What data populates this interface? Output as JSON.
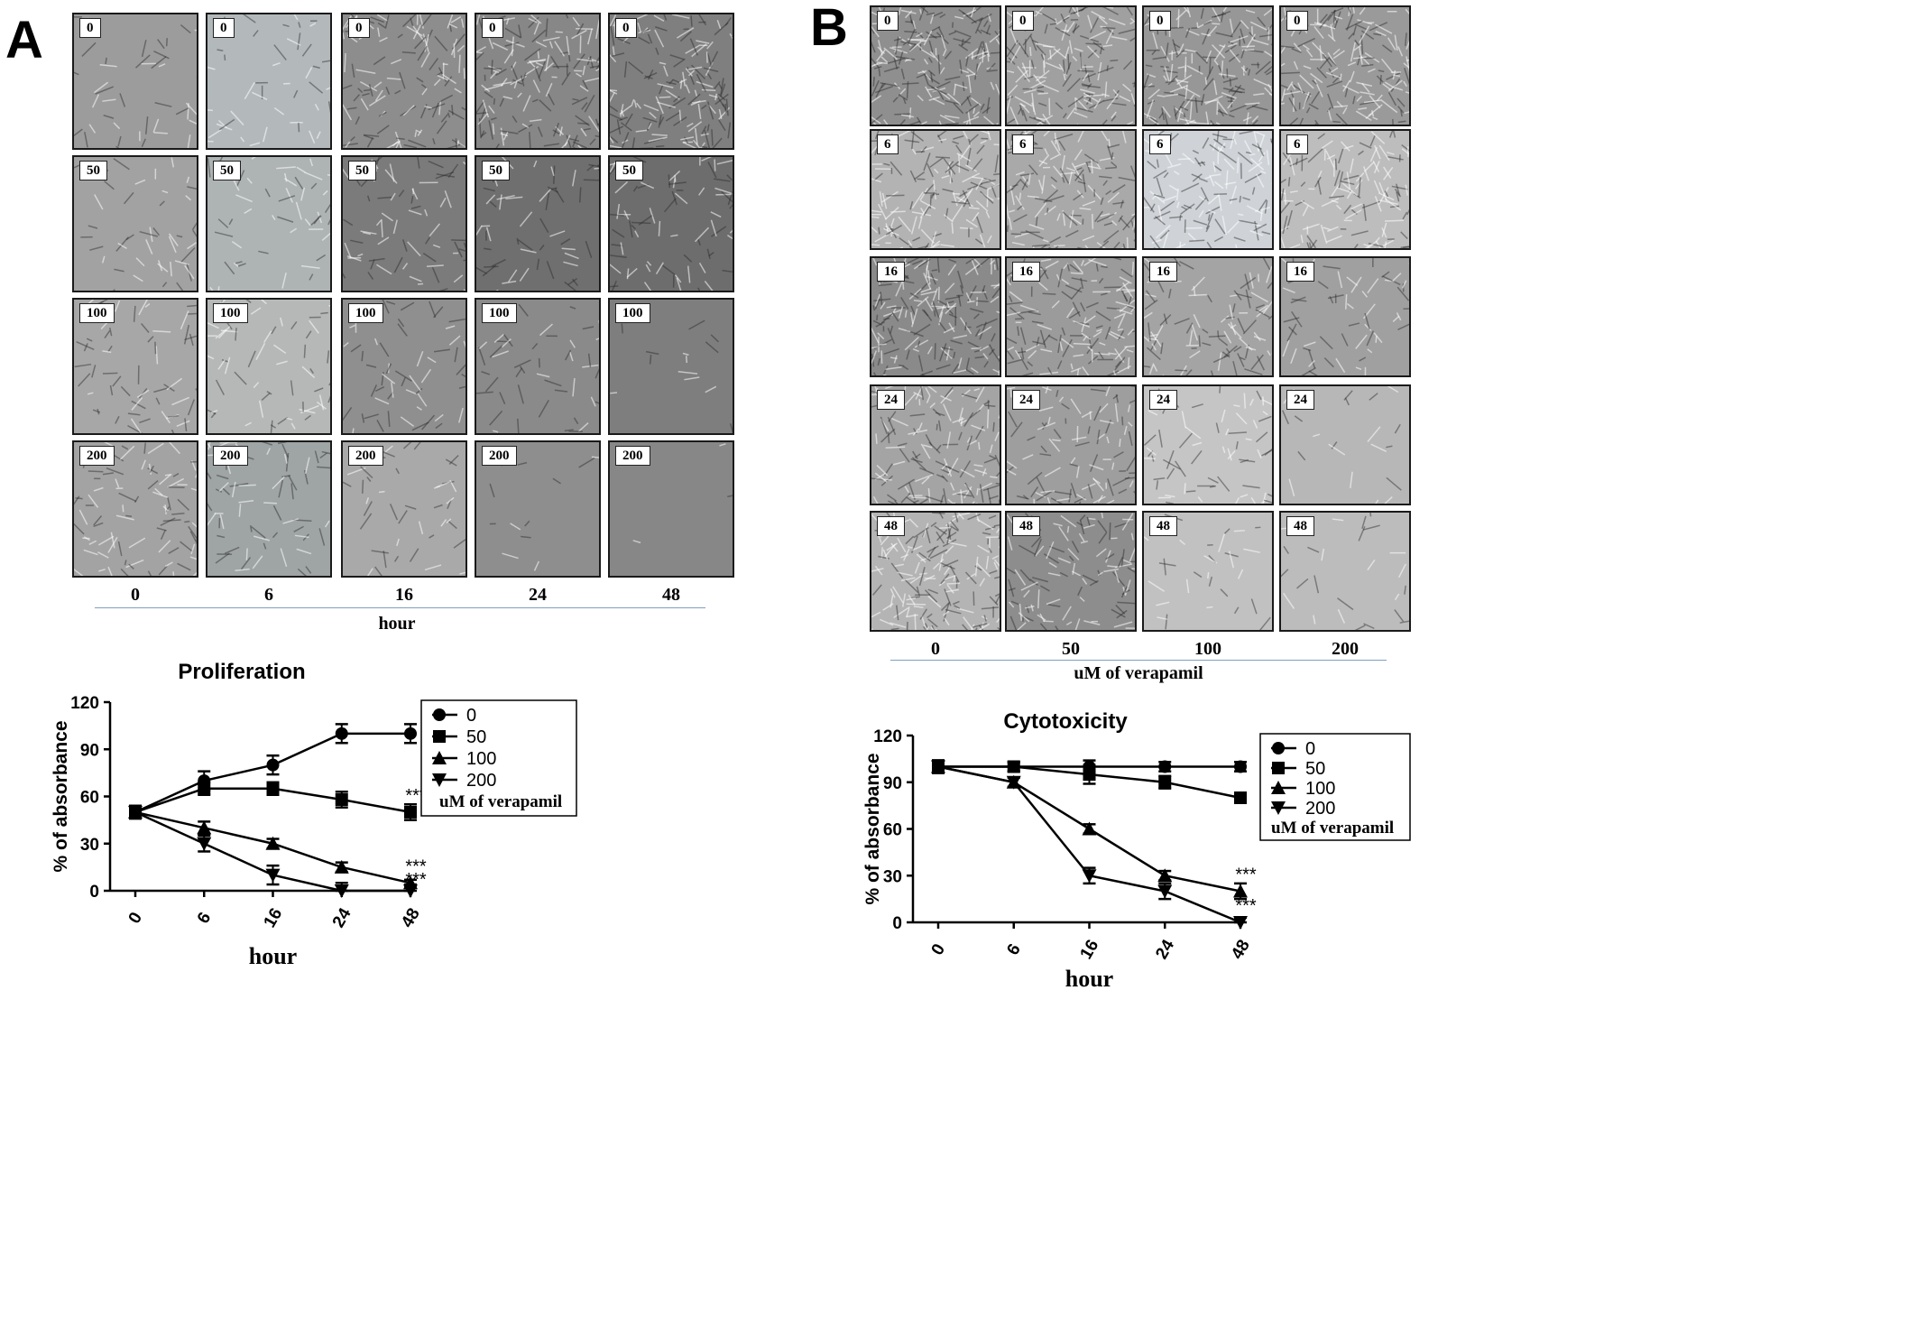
{
  "panel_a": {
    "letter": "A",
    "columns": [
      "0",
      "6",
      "16",
      "24",
      "48"
    ],
    "rows": [
      "0",
      "50",
      "100",
      "200"
    ],
    "column_axis_title": "hour"
  },
  "panel_b": {
    "letter": "B",
    "columns": [
      "0",
      "50",
      "100",
      "200"
    ],
    "rows": [
      "0",
      "6",
      "16",
      "24",
      "48"
    ],
    "column_axis_title": "uM of verapamil"
  },
  "chart_data": [
    {
      "type": "line",
      "title": "Proliferation",
      "xlabel": "hour",
      "ylabel": "% of absorbance",
      "categories": [
        "0",
        "6",
        "16",
        "24",
        "48"
      ],
      "yticks": [
        "0",
        "30",
        "60",
        "90",
        "120"
      ],
      "ylim": [
        0,
        120
      ],
      "legend_title": "uM of verapamil",
      "legend_position": "right",
      "series": [
        {
          "name": "0",
          "marker": "circle",
          "values": [
            50,
            70,
            80,
            100,
            100
          ],
          "errors": [
            4,
            6,
            6,
            6,
            6
          ]
        },
        {
          "name": "50",
          "marker": "square",
          "values": [
            50,
            65,
            65,
            58,
            50
          ],
          "errors": [
            4,
            4,
            4,
            5,
            5
          ]
        },
        {
          "name": "100",
          "marker": "triangle-up",
          "values": [
            50,
            40,
            30,
            15,
            5
          ],
          "errors": [
            4,
            4,
            3,
            3,
            2
          ]
        },
        {
          "name": "200",
          "marker": "triangle-down",
          "values": [
            50,
            30,
            10,
            0,
            0
          ],
          "errors": [
            4,
            5,
            6,
            5,
            4
          ]
        }
      ],
      "annotations": [
        {
          "text": "***",
          "category": "48",
          "value": 50
        },
        {
          "text": "***",
          "category": "48",
          "value": 5
        },
        {
          "text": "***",
          "category": "48",
          "value": 0
        }
      ]
    },
    {
      "type": "line",
      "title": "Cytotoxicity",
      "xlabel": "hour",
      "ylabel": "% of absorbance",
      "categories": [
        "0",
        "6",
        "16",
        "24",
        "48"
      ],
      "yticks": [
        "0",
        "30",
        "60",
        "90",
        "120"
      ],
      "ylim": [
        0,
        120
      ],
      "legend_title": "uM of verapamil",
      "legend_position": "right",
      "series": [
        {
          "name": "0",
          "marker": "circle",
          "values": [
            100,
            100,
            100,
            100,
            100
          ],
          "errors": [
            4,
            3,
            4,
            3,
            3
          ]
        },
        {
          "name": "50",
          "marker": "square",
          "values": [
            100,
            100,
            95,
            90,
            80
          ],
          "errors": [
            4,
            3,
            6,
            4,
            3
          ]
        },
        {
          "name": "100",
          "marker": "triangle-up",
          "values": [
            100,
            90,
            60,
            30,
            20
          ],
          "errors": [
            4,
            3,
            3,
            3,
            5
          ]
        },
        {
          "name": "200",
          "marker": "triangle-down",
          "values": [
            100,
            90,
            30,
            20,
            0
          ],
          "errors": [
            4,
            3,
            5,
            5,
            3
          ]
        }
      ],
      "annotations": [
        {
          "text": "***",
          "category": "48",
          "value": 20
        },
        {
          "text": "***",
          "category": "48",
          "value": 0
        }
      ]
    }
  ]
}
